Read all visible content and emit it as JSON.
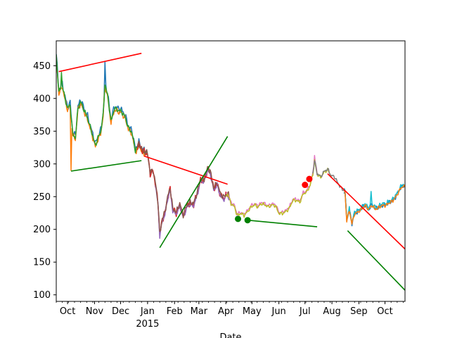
{
  "chart_data": {
    "type": "line",
    "title": "",
    "xlabel": "Date",
    "ylabel": "",
    "ylim": [
      90,
      488
    ],
    "x_range": [
      "2014-09-18",
      "2015-10-24"
    ],
    "grid": false,
    "y_ticks": [
      100,
      150,
      200,
      250,
      300,
      350,
      400,
      450
    ],
    "x_ticks": [
      {
        "date": "2014-10-01",
        "label": "Oct"
      },
      {
        "date": "2014-11-01",
        "label": "Nov"
      },
      {
        "date": "2014-12-01",
        "label": "Dec"
      },
      {
        "date": "2015-01-01",
        "label": "Jan"
      },
      {
        "date": "2015-02-01",
        "label": "Feb"
      },
      {
        "date": "2015-03-01",
        "label": "Mar"
      },
      {
        "date": "2015-04-01",
        "label": "Apr"
      },
      {
        "date": "2015-05-01",
        "label": "May"
      },
      {
        "date": "2015-06-01",
        "label": "Jun"
      },
      {
        "date": "2015-07-01",
        "label": "Jul"
      },
      {
        "date": "2015-08-01",
        "label": "Aug"
      },
      {
        "date": "2015-09-01",
        "label": "Sep"
      },
      {
        "date": "2015-10-01",
        "label": "Oct"
      }
    ],
    "year_label": {
      "date": "2015-01-01",
      "label": "2015"
    },
    "colors": [
      "#1f77b4",
      "#ff7f0e",
      "#2ca02c",
      "#d62728",
      "#9467bd",
      "#8c564b",
      "#e377c2",
      "#7f7f7f",
      "#bcbd22",
      "#17becf"
    ],
    "price_keypoints": [
      [
        "2014-09-18",
        465
      ],
      [
        "2014-09-21",
        410
      ],
      [
        "2014-09-25",
        420
      ],
      [
        "2014-09-28",
        400
      ],
      [
        "2014-10-01",
        385
      ],
      [
        "2014-10-04",
        390
      ],
      [
        "2014-10-07",
        345
      ],
      [
        "2014-10-10",
        340
      ],
      [
        "2014-10-13",
        385
      ],
      [
        "2014-10-16",
        395
      ],
      [
        "2014-10-20",
        382
      ],
      [
        "2014-10-24",
        370
      ],
      [
        "2014-10-28",
        352
      ],
      [
        "2014-11-02",
        328
      ],
      [
        "2014-11-05",
        340
      ],
      [
        "2014-11-08",
        348
      ],
      [
        "2014-11-11",
        375
      ],
      [
        "2014-11-13",
        422
      ],
      [
        "2014-11-16",
        405
      ],
      [
        "2014-11-20",
        365
      ],
      [
        "2014-11-24",
        385
      ],
      [
        "2014-11-28",
        382
      ],
      [
        "2014-12-02",
        380
      ],
      [
        "2014-12-06",
        372
      ],
      [
        "2014-12-10",
        355
      ],
      [
        "2014-12-14",
        348
      ],
      [
        "2014-12-18",
        320
      ],
      [
        "2014-12-22",
        330
      ],
      [
        "2014-12-26",
        320
      ],
      [
        "2015-01-01",
        315
      ],
      [
        "2015-01-04",
        285
      ],
      [
        "2015-01-07",
        290
      ],
      [
        "2015-01-10",
        270
      ],
      [
        "2015-01-13",
        240
      ],
      [
        "2015-01-15",
        192
      ],
      [
        "2015-01-18",
        215
      ],
      [
        "2015-01-21",
        225
      ],
      [
        "2015-01-24",
        248
      ],
      [
        "2015-01-27",
        262
      ],
      [
        "2015-01-30",
        230
      ],
      [
        "2015-02-03",
        225
      ],
      [
        "2015-02-07",
        238
      ],
      [
        "2015-02-11",
        220
      ],
      [
        "2015-02-15",
        235
      ],
      [
        "2015-02-19",
        240
      ],
      [
        "2015-02-23",
        238
      ],
      [
        "2015-02-27",
        255
      ],
      [
        "2015-03-03",
        275
      ],
      [
        "2015-03-07",
        275
      ],
      [
        "2015-03-11",
        292
      ],
      [
        "2015-03-14",
        288
      ],
      [
        "2015-03-18",
        262
      ],
      [
        "2015-03-22",
        270
      ],
      [
        "2015-03-26",
        252
      ],
      [
        "2015-03-30",
        248
      ],
      [
        "2015-04-03",
        255
      ],
      [
        "2015-04-07",
        240
      ],
      [
        "2015-04-11",
        235
      ],
      [
        "2015-04-14",
        222
      ],
      [
        "2015-04-18",
        225
      ],
      [
        "2015-04-22",
        222
      ],
      [
        "2015-04-26",
        228
      ],
      [
        "2015-04-30",
        235
      ],
      [
        "2015-05-04",
        238
      ],
      [
        "2015-05-08",
        235
      ],
      [
        "2015-05-12",
        240
      ],
      [
        "2015-05-16",
        238
      ],
      [
        "2015-05-20",
        235
      ],
      [
        "2015-05-24",
        238
      ],
      [
        "2015-05-28",
        237
      ],
      [
        "2015-06-01",
        225
      ],
      [
        "2015-06-05",
        225
      ],
      [
        "2015-06-09",
        228
      ],
      [
        "2015-06-13",
        233
      ],
      [
        "2015-06-17",
        245
      ],
      [
        "2015-06-21",
        245
      ],
      [
        "2015-06-25",
        242
      ],
      [
        "2015-06-29",
        255
      ],
      [
        "2015-07-03",
        258
      ],
      [
        "2015-07-07",
        268
      ],
      [
        "2015-07-10",
        285
      ],
      [
        "2015-07-12",
        305
      ],
      [
        "2015-07-15",
        285
      ],
      [
        "2015-07-19",
        280
      ],
      [
        "2015-07-23",
        288
      ],
      [
        "2015-07-27",
        292
      ],
      [
        "2015-07-31",
        282
      ],
      [
        "2015-08-04",
        280
      ],
      [
        "2015-08-08",
        270
      ],
      [
        "2015-08-12",
        262
      ],
      [
        "2015-08-16",
        258
      ],
      [
        "2015-08-18",
        215
      ],
      [
        "2015-08-21",
        230
      ],
      [
        "2015-08-24",
        210
      ],
      [
        "2015-08-27",
        225
      ],
      [
        "2015-08-31",
        228
      ],
      [
        "2015-09-04",
        232
      ],
      [
        "2015-09-08",
        238
      ],
      [
        "2015-09-12",
        232
      ],
      [
        "2015-09-16",
        238
      ],
      [
        "2015-09-20",
        232
      ],
      [
        "2015-09-24",
        235
      ],
      [
        "2015-09-28",
        238
      ],
      [
        "2015-10-02",
        238
      ],
      [
        "2015-10-06",
        242
      ],
      [
        "2015-10-10",
        245
      ],
      [
        "2015-10-14",
        252
      ],
      [
        "2015-10-18",
        262
      ],
      [
        "2015-10-22",
        268
      ],
      [
        "2015-10-24",
        265
      ]
    ],
    "series_segments": [
      {
        "color_index": 0,
        "from": "2014-09-18",
        "to": "2014-12-31",
        "offset": 8,
        "amp": 6
      },
      {
        "color_index": 1,
        "from": "2014-09-18",
        "to": "2014-12-31",
        "offset": -6,
        "amp": 5
      },
      {
        "color_index": 2,
        "from": "2014-09-18",
        "to": "2014-12-31",
        "offset": 0,
        "amp": 4
      },
      {
        "color_index": 3,
        "from": "2014-12-20",
        "to": "2015-04-05",
        "offset": 0,
        "amp": 6
      },
      {
        "color_index": 4,
        "from": "2015-01-10",
        "to": "2015-04-05",
        "offset": -6,
        "amp": 4
      },
      {
        "color_index": 5,
        "from": "2014-12-20",
        "to": "2015-04-05",
        "offset": 4,
        "amp": 5
      },
      {
        "color_index": 6,
        "from": "2015-04-01",
        "to": "2015-07-15",
        "offset": 3,
        "amp": 3
      },
      {
        "color_index": 8,
        "from": "2015-04-01",
        "to": "2015-07-31",
        "offset": -2,
        "amp": 3
      },
      {
        "color_index": 7,
        "from": "2015-07-10",
        "to": "2015-08-18",
        "offset": 1,
        "amp": 3
      },
      {
        "color_index": 0,
        "from": "2015-08-15",
        "to": "2015-10-24",
        "offset": -2,
        "amp": 4
      },
      {
        "color_index": 9,
        "from": "2015-08-15",
        "to": "2015-10-24",
        "offset": 3,
        "amp": 4
      },
      {
        "color_index": 1,
        "from": "2015-08-15",
        "to": "2015-10-24",
        "offset": -4,
        "amp": 3
      }
    ],
    "spikes": [
      {
        "date": "2014-11-13",
        "value": 456,
        "color_index": 0
      },
      {
        "date": "2014-09-24",
        "value": 440,
        "color_index": 2
      },
      {
        "date": "2014-10-05",
        "value": 290,
        "color_index": 1
      },
      {
        "date": "2015-07-12",
        "value": 313,
        "color_index": 6
      },
      {
        "date": "2015-09-15",
        "value": 258,
        "color_index": 9
      }
    ],
    "trend_lines": [
      {
        "color": "#ff0000",
        "points": [
          [
            "2014-09-21",
            441
          ],
          [
            "2014-12-25",
            469
          ]
        ]
      },
      {
        "color": "#008000",
        "points": [
          [
            "2014-10-05",
            289
          ],
          [
            "2014-12-25",
            305
          ]
        ]
      },
      {
        "color": "#ff0000",
        "points": [
          [
            "2014-12-28",
            312
          ],
          [
            "2015-04-03",
            269
          ]
        ]
      },
      {
        "color": "#008000",
        "points": [
          [
            "2015-01-15",
            172
          ],
          [
            "2015-04-03",
            342
          ]
        ]
      },
      {
        "color": "#008000",
        "points": [
          [
            "2015-04-26",
            214
          ],
          [
            "2015-07-15",
            204
          ]
        ]
      },
      {
        "color": "#ff0000",
        "points": [
          [
            "2015-07-27",
            285
          ],
          [
            "2015-10-24",
            170
          ]
        ]
      },
      {
        "color": "#008000",
        "points": [
          [
            "2015-08-19",
            198
          ],
          [
            "2015-10-24",
            107
          ]
        ]
      }
    ],
    "markers": [
      {
        "date": "2015-04-15",
        "value": 216,
        "color": "#008000"
      },
      {
        "date": "2015-04-26",
        "value": 214,
        "color": "#008000"
      },
      {
        "date": "2015-07-01",
        "value": 268,
        "color": "#ff0000"
      },
      {
        "date": "2015-07-06",
        "value": 277,
        "color": "#ff0000"
      }
    ]
  }
}
